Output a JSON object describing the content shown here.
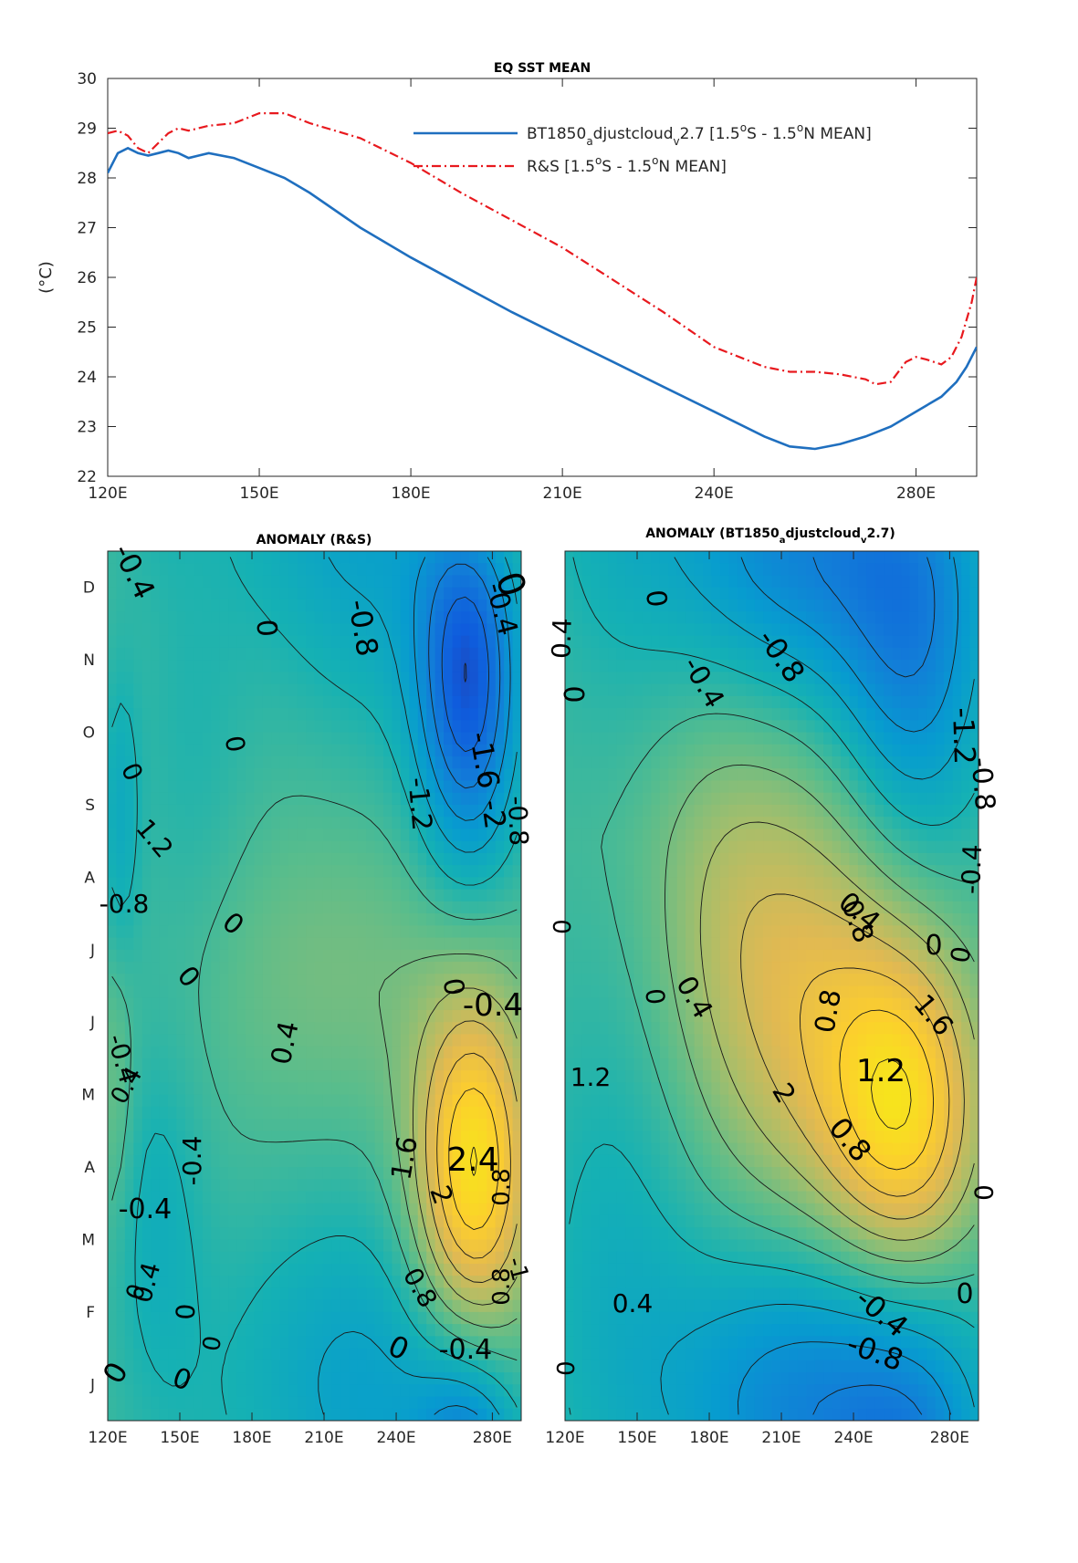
{
  "chart_data": [
    {
      "type": "line",
      "title": "EQ SST MEAN",
      "xlabel": "",
      "ylabel": "(°C)",
      "xlim": [
        120,
        292
      ],
      "ylim": [
        22,
        30
      ],
      "xticks": [
        120,
        150,
        180,
        210,
        240,
        280
      ],
      "xtick_labels": [
        "120E",
        "150E",
        "180E",
        "210E",
        "240E",
        "280E"
      ],
      "yticks": [
        22,
        23,
        24,
        25,
        26,
        27,
        28,
        29,
        30
      ],
      "ytick_labels": [
        "22",
        "23",
        "24",
        "25",
        "26",
        "27",
        "28",
        "29",
        "30"
      ],
      "legend_position": "top-right",
      "series": [
        {
          "name": "BT1850_adjustcloud_v2.7 [1.5°S - 1.5°N MEAN]",
          "legend_main": "BT1850",
          "legend_sub1": "a",
          "legend_mid": "djustcloud",
          "legend_sub2": "v",
          "legend_tail1": "2.7 [1.5",
          "legend_tail2": "S - 1.5",
          "legend_tail3": "N MEAN]",
          "color": "#1f6fbf",
          "style": "solid",
          "x": [
            120,
            122,
            124,
            126,
            128,
            130,
            132,
            134,
            136,
            138,
            140,
            145,
            150,
            155,
            160,
            170,
            180,
            190,
            200,
            210,
            220,
            230,
            240,
            250,
            255,
            260,
            265,
            270,
            275,
            280,
            285,
            288,
            290,
            292
          ],
          "y": [
            28.1,
            28.5,
            28.6,
            28.5,
            28.45,
            28.5,
            28.55,
            28.5,
            28.4,
            28.45,
            28.5,
            28.4,
            28.2,
            28.0,
            27.7,
            27.0,
            26.4,
            25.85,
            25.3,
            24.8,
            24.3,
            23.8,
            23.3,
            22.8,
            22.6,
            22.55,
            22.65,
            22.8,
            23.0,
            23.3,
            23.6,
            23.9,
            24.2,
            24.6
          ]
        },
        {
          "name": "R&S [1.5°S - 1.5°N MEAN]",
          "legend_main": "R&S [1.5",
          "legend_tail2": "S - 1.5",
          "legend_tail3": "N MEAN]",
          "color": "#e8191e",
          "style": "dashdot",
          "x": [
            120,
            122,
            124,
            126,
            128,
            130,
            132,
            134,
            136,
            138,
            140,
            145,
            150,
            155,
            160,
            170,
            180,
            190,
            200,
            210,
            220,
            230,
            240,
            250,
            255,
            260,
            265,
            270,
            272,
            275,
            278,
            280,
            282,
            285,
            287,
            289,
            291,
            292
          ],
          "y": [
            28.9,
            28.95,
            28.85,
            28.6,
            28.5,
            28.7,
            28.9,
            29.0,
            28.95,
            29.0,
            29.05,
            29.1,
            29.3,
            29.3,
            29.1,
            28.8,
            28.3,
            27.7,
            27.15,
            26.6,
            25.95,
            25.3,
            24.6,
            24.2,
            24.1,
            24.1,
            24.05,
            23.95,
            23.85,
            23.9,
            24.3,
            24.4,
            24.35,
            24.25,
            24.4,
            24.8,
            25.5,
            26.0
          ]
        }
      ]
    },
    {
      "type": "heatmap",
      "title": "ANOMALY (R&S)",
      "xlim": [
        120,
        292
      ],
      "xticks": [
        120,
        150,
        180,
        210,
        240,
        280
      ],
      "xtick_labels": [
        "120E",
        "150E",
        "180E",
        "210E",
        "240E",
        "280E"
      ],
      "yticks": [
        "J",
        "F",
        "M",
        "A",
        "M",
        "J",
        "J",
        "A",
        "S",
        "O",
        "N",
        "D"
      ],
      "colormap": "parula",
      "clim": [
        -2.4,
        2.4
      ],
      "background_value": 0,
      "features": [
        {
          "lon": 270,
          "month": 10.2,
          "amp": -2.2,
          "sx": 15,
          "sy": 1.8
        },
        {
          "lon": 272,
          "month": 3.4,
          "amp": 2.5,
          "sx": 17,
          "sy": 1.7
        },
        {
          "lon": 125,
          "month": 8.2,
          "amp": -0.6,
          "sx": 6,
          "sy": 1.5
        },
        {
          "lon": 140,
          "month": 2.8,
          "amp": -0.5,
          "sx": 14,
          "sy": 1.8
        },
        {
          "lon": 210,
          "month": 0.8,
          "amp": -0.5,
          "sx": 40,
          "sy": 1.6
        },
        {
          "lon": 235,
          "month": 11.8,
          "amp": -0.5,
          "sx": 30,
          "sy": 2
        },
        {
          "lon": 155,
          "month": 9,
          "amp": -0.3,
          "sx": 18,
          "sy": 2
        },
        {
          "lon": 215,
          "month": 6.2,
          "amp": 0.4,
          "sx": 40,
          "sy": 1.5
        },
        {
          "lon": 123,
          "month": 4.6,
          "amp": 0.4,
          "sx": 6,
          "sy": 1.5
        }
      ],
      "contour_labels": [
        "-0.4",
        "0",
        "-0.4",
        "0",
        "0",
        "-0.8",
        "-1.2",
        "-1.6",
        "-2",
        "-0.8",
        "-0.4",
        "0",
        "0",
        "0",
        "0.4",
        "0",
        "-0.4",
        "0.4",
        "0",
        "1.6",
        "2.4",
        "2",
        "0.8",
        "0.8",
        "1.2",
        "0.4",
        "-0.4",
        "0",
        "0",
        "-0.4",
        "0",
        "0",
        "0",
        "-0.4",
        "0.8",
        "-1",
        "-0.8"
      ]
    },
    {
      "type": "heatmap",
      "title": "ANOMALY (BT1850_adjustcloud_v2.7)",
      "title_main": "ANOMALY (BT1850",
      "title_sub1": "a",
      "title_mid": "djustcloud",
      "title_sub2": "v",
      "title_tail": "2.7)",
      "xlim": [
        120,
        292
      ],
      "xticks": [
        120,
        150,
        180,
        210,
        240,
        280
      ],
      "xtick_labels": [
        "120E",
        "150E",
        "180E",
        "210E",
        "240E",
        "280E"
      ],
      "colormap": "parula",
      "clim": [
        -2.4,
        2.4
      ],
      "background_value": 0,
      "features": [
        {
          "lon": 262,
          "month": 4.2,
          "amp": 2.0,
          "sx": 22,
          "sy": 1.6
        },
        {
          "lon": 225,
          "month": 5.6,
          "amp": 1.3,
          "sx": 30,
          "sy": 2.2
        },
        {
          "lon": 185,
          "month": 7.2,
          "amp": 0.6,
          "sx": 24,
          "sy": 2
        },
        {
          "lon": 265,
          "month": 10.5,
          "amp": -1.3,
          "sx": 22,
          "sy": 2
        },
        {
          "lon": 215,
          "month": 11.8,
          "amp": -0.7,
          "sx": 35,
          "sy": 1.5
        },
        {
          "lon": 225,
          "month": 0.6,
          "amp": -0.9,
          "sx": 45,
          "sy": 1.6
        },
        {
          "lon": 140,
          "month": 2.0,
          "amp": -0.5,
          "sx": 25,
          "sy": 3
        }
      ],
      "contour_labels": [
        "0",
        "0.4",
        "0",
        "-0.4",
        "-0.8",
        "-1.2",
        "-0.8",
        "-0.4",
        "0.8",
        "0.4",
        "0",
        "0",
        "0",
        "0.4",
        "0.8",
        "1.6",
        "1.2",
        "2",
        "0.8",
        "1.2",
        "0",
        "0.4",
        "0",
        "-0.4",
        "0",
        "-0.8",
        "0"
      ]
    }
  ]
}
